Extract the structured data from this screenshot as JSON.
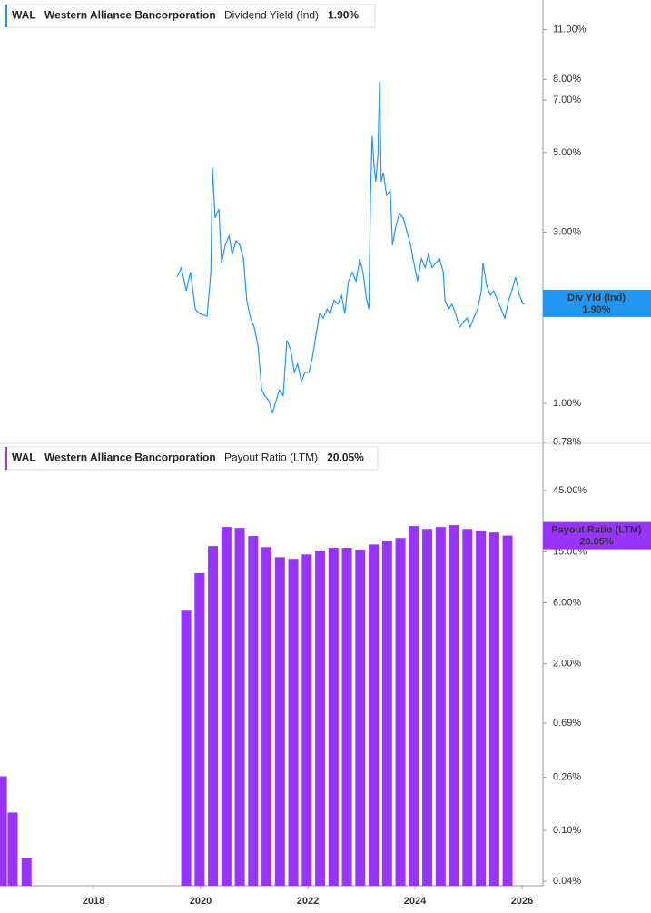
{
  "chart_data": [
    {
      "type": "line",
      "ticker": "WAL",
      "company": "Western Alliance Bancorporation",
      "log": true,
      "grid": false,
      "xlim": [
        2016.254,
        2026.39
      ],
      "ylim": [
        0.774,
        13.3
      ],
      "yticks": [
        {
          "value": 0.78,
          "label": "0.78%"
        },
        {
          "value": 1,
          "label": "1.00%"
        },
        {
          "value": 3,
          "label": "3.00%"
        },
        {
          "value": 5,
          "label": "5.00%"
        },
        {
          "value": 7,
          "label": "7.00%"
        },
        {
          "value": 8,
          "label": "8.00%"
        },
        {
          "value": 11,
          "label": "11.00%"
        }
      ],
      "x": [
        2019.56,
        2019.64,
        2019.73,
        2019.81,
        2019.9,
        2019.98,
        2020.12,
        2020.19,
        2020.22,
        2020.27,
        2020.34,
        2020.39,
        2020.46,
        2020.53,
        2020.59,
        2020.66,
        2020.73,
        2020.8,
        2020.86,
        2020.93,
        2021.0,
        2021.07,
        2021.14,
        2021.2,
        2021.27,
        2021.34,
        2021.41,
        2021.47,
        2021.54,
        2021.61,
        2021.68,
        2021.75,
        2021.81,
        2021.88,
        2021.95,
        2022.02,
        2022.08,
        2022.15,
        2022.22,
        2022.29,
        2022.36,
        2022.42,
        2022.49,
        2022.56,
        2022.63,
        2022.69,
        2022.76,
        2022.83,
        2022.9,
        2022.97,
        2023.03,
        2023.1,
        2023.14,
        2023.17,
        2023.2,
        2023.24,
        2023.27,
        2023.31,
        2023.34,
        2023.37,
        2023.41,
        2023.47,
        2023.54,
        2023.58,
        2023.64,
        2023.71,
        2023.78,
        2023.85,
        2023.92,
        2023.98,
        2024.05,
        2024.12,
        2024.19,
        2024.25,
        2024.32,
        2024.39,
        2024.46,
        2024.53,
        2024.56,
        2024.63,
        2024.69,
        2024.76,
        2024.83,
        2024.9,
        2024.97,
        2025.03,
        2025.1,
        2025.17,
        2025.24,
        2025.27,
        2025.34,
        2025.41,
        2025.47,
        2025.54,
        2025.61,
        2025.68,
        2025.75,
        2025.81,
        2025.88,
        2025.95,
        2026.02,
        2026.05
      ],
      "series": [
        {
          "name": "Dividend Yield (Ind)",
          "color": "#2196f3",
          "last_label": "1.90%",
          "flag_label": "Div Yld (Ind)",
          "values": [
            2.25,
            2.39,
            2.06,
            2.32,
            1.83,
            1.78,
            1.75,
            2.32,
            4.53,
            3.29,
            3.48,
            2.46,
            2.76,
            2.93,
            2.6,
            2.84,
            2.76,
            2.53,
            1.94,
            1.73,
            1.63,
            1.45,
            1.09,
            1.05,
            1.02,
            0.94,
            1.02,
            1.09,
            1.05,
            1.5,
            1.41,
            1.22,
            1.29,
            1.15,
            1.22,
            1.22,
            1.33,
            1.54,
            1.78,
            1.73,
            1.83,
            1.78,
            1.94,
            1.89,
            2.0,
            1.78,
            2.19,
            2.32,
            2.19,
            2.53,
            2.32,
            1.94,
            1.83,
            3.69,
            5.56,
            4.53,
            4.15,
            4.94,
            7.89,
            4.15,
            4.4,
            3.8,
            3.92,
            2.76,
            3.1,
            3.38,
            3.29,
            3.01,
            2.76,
            2.46,
            2.19,
            2.53,
            2.39,
            2.6,
            2.39,
            2.46,
            2.53,
            2.32,
            1.94,
            1.83,
            1.89,
            1.78,
            1.63,
            1.68,
            1.73,
            1.63,
            1.73,
            1.83,
            2.06,
            2.46,
            2.13,
            2.0,
            2.06,
            1.94,
            1.83,
            1.73,
            1.94,
            2.06,
            2.25,
            2.0,
            1.89,
            1.9
          ]
        }
      ]
    },
    {
      "type": "bar",
      "ticker": "WAL",
      "company": "Western Alliance Bancorporation",
      "log": true,
      "grid": false,
      "xlim": [
        2016.254,
        2026.39
      ],
      "ylim": [
        0.037,
        102
      ],
      "xticks": [
        2018,
        2020,
        2022,
        2024,
        2026
      ],
      "yticks": [
        {
          "value": 0.04,
          "label": "0.04%"
        },
        {
          "value": 0.1,
          "label": "0.10%"
        },
        {
          "value": 0.26,
          "label": "0.26%"
        },
        {
          "value": 0.69,
          "label": "0.69%"
        },
        {
          "value": 2,
          "label": "2.00%"
        },
        {
          "value": 6,
          "label": "6.00%"
        },
        {
          "value": 15,
          "label": "15.00%"
        },
        {
          "value": 45,
          "label": "45.00%"
        }
      ],
      "x": [
        2016.29,
        2016.49,
        2016.75,
        2019.73,
        2019.98,
        2020.23,
        2020.48,
        2020.73,
        2020.98,
        2021.23,
        2021.48,
        2021.73,
        2021.98,
        2022.23,
        2022.48,
        2022.73,
        2022.98,
        2023.23,
        2023.48,
        2023.73,
        2023.98,
        2024.23,
        2024.48,
        2024.73,
        2024.98,
        2025.23,
        2025.48,
        2025.73
      ],
      "series": [
        {
          "name": "Payout Ratio (LTM)",
          "color": "#9933ff",
          "last_label": "20.05%",
          "values": [
            0.265,
            0.138,
            0.061,
            5.2,
            10.2,
            16.6,
            23.4,
            23.0,
            19.9,
            16.3,
            13.6,
            13.2,
            14.3,
            15.3,
            16.1,
            16.1,
            15.6,
            17.1,
            18.3,
            19.2,
            23.8,
            22.6,
            23.4,
            24.2,
            22.6,
            21.9,
            21.2,
            20.05
          ]
        }
      ]
    }
  ]
}
